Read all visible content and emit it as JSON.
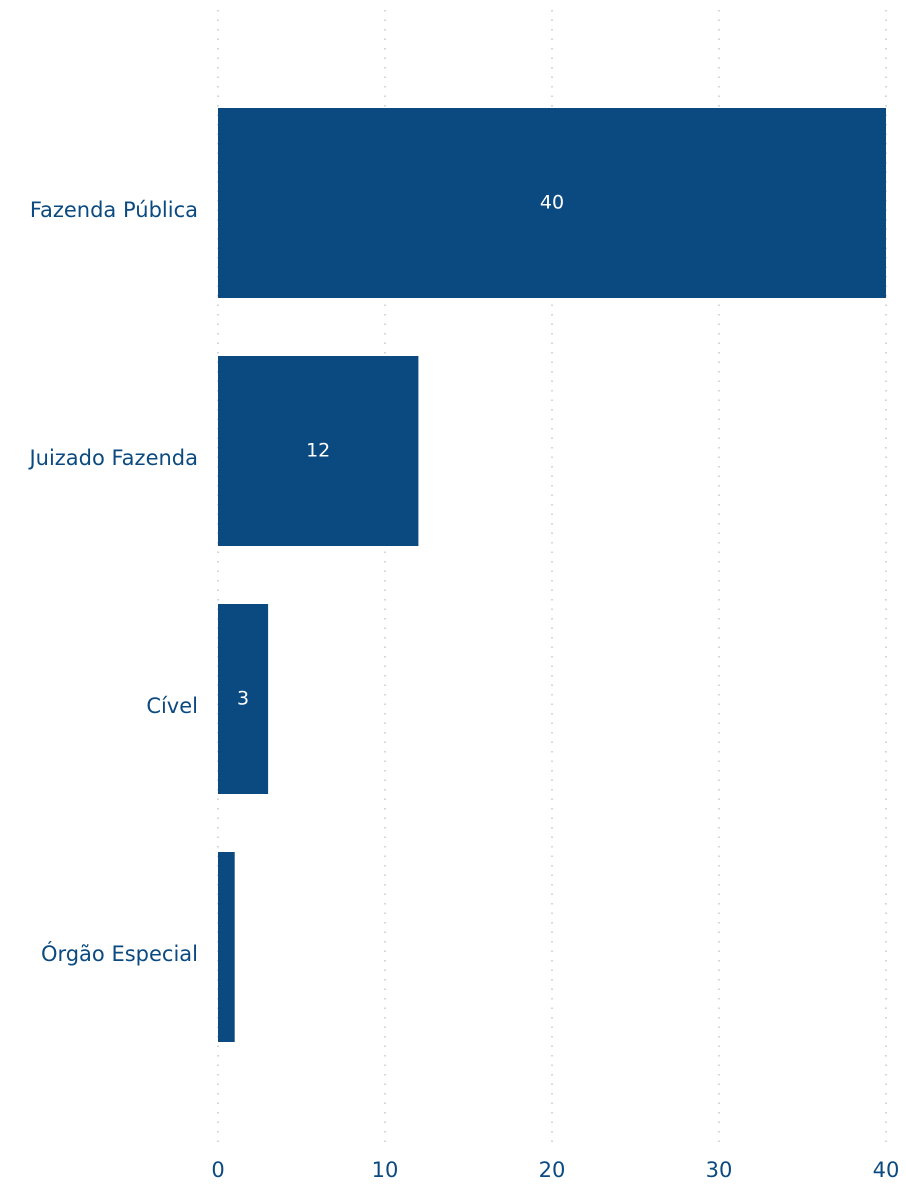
{
  "chart_data": {
    "type": "bar",
    "orientation": "horizontal",
    "categories": [
      "Fazenda Pública",
      "Juizado Fazenda",
      "Cível",
      "Órgão Especial"
    ],
    "values": [
      40,
      12,
      3,
      1
    ],
    "color": "#0b4a80",
    "xlim": [
      0,
      40
    ],
    "xticks": [
      0,
      10,
      20,
      30,
      40
    ],
    "grid": true
  }
}
